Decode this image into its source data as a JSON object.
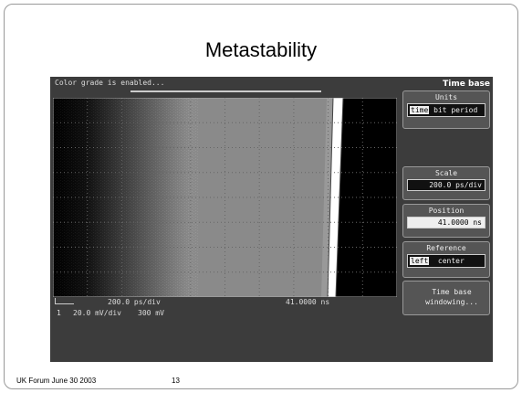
{
  "slide": {
    "title": "Metastability",
    "footer": "UK Forum June 30 2003",
    "page": "13"
  },
  "scope": {
    "status": "Color grade is enabled...",
    "panel_title": "Time base",
    "units": {
      "label": "Units",
      "options": [
        "time",
        "bit period"
      ]
    },
    "scale": {
      "label": "Scale",
      "value": "200.0 ps/div"
    },
    "position": {
      "label": "Position",
      "value": "41.0000 ns"
    },
    "reference": {
      "label": "Reference",
      "options": [
        "left",
        "center"
      ]
    },
    "windowing": "Time base windowing...",
    "readout": {
      "timebase": "200.0 ps/div",
      "position": "41.0000 ns",
      "channel": "1",
      "vscale": "20.0 mV/div",
      "offset": "300 mV"
    }
  }
}
